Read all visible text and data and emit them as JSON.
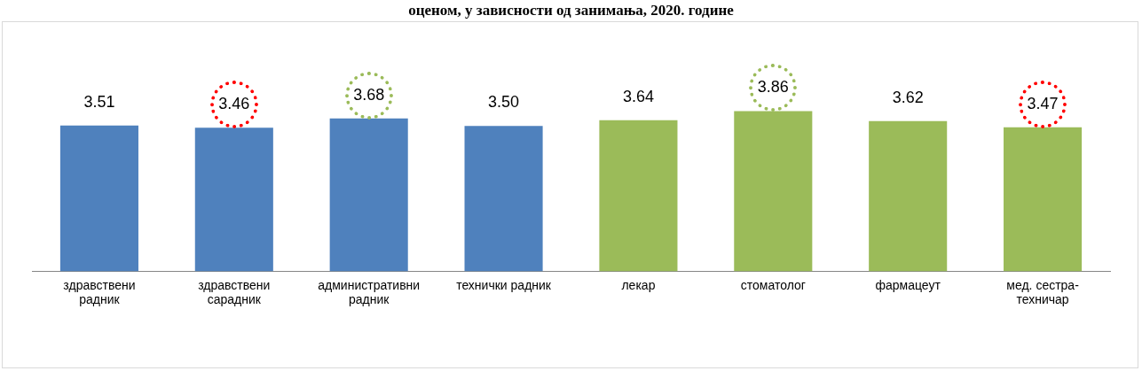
{
  "chart_data": {
    "type": "bar",
    "title": "оценом, у зависности од занимања, 2020. године",
    "categories": [
      "здравствени радник",
      "здравствени сарадник",
      "административни радник",
      "технички радник",
      "лекар",
      "стоматолог",
      "фармацеут",
      "мед. сестра-техничар"
    ],
    "values": [
      3.51,
      3.46,
      3.68,
      3.5,
      3.64,
      3.86,
      3.62,
      3.47
    ],
    "colors": [
      "#4f81bd",
      "#4f81bd",
      "#4f81bd",
      "#4f81bd",
      "#9bbb59",
      "#9bbb59",
      "#9bbb59",
      "#9bbb59"
    ],
    "value_labels": [
      "3.51",
      "3.46",
      "3.68",
      "3.50",
      "3.64",
      "3.86",
      "3.62",
      "3.47"
    ],
    "legend": false
  }
}
